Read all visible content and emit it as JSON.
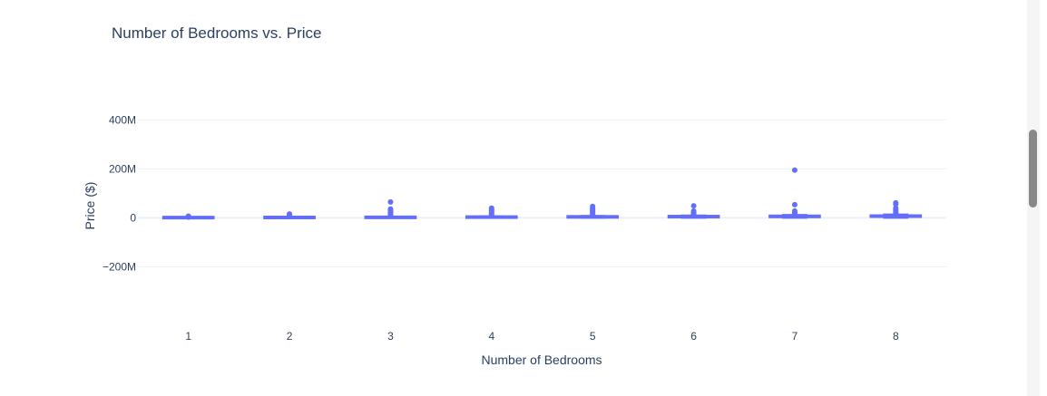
{
  "colors": {
    "series": "#636efa",
    "text": "#2a3f5f",
    "grid": "#ebf0f8"
  },
  "chart_data": {
    "type": "box",
    "title": "Number of Bedrooms vs. Price",
    "xlabel": "Number of Bedrooms",
    "ylabel": "Price ($)",
    "ylim": [
      -380000000,
      520000000
    ],
    "y_ticks": [
      {
        "value": 400000000,
        "label": "400M"
      },
      {
        "value": 200000000,
        "label": "200M"
      },
      {
        "value": 0,
        "label": "0"
      },
      {
        "value": -200000000,
        "label": "−200M"
      }
    ],
    "grid": true,
    "categories": [
      "1",
      "2",
      "3",
      "4",
      "5",
      "6",
      "7",
      "8"
    ],
    "boxes": [
      {
        "category": "1",
        "q1": 200000,
        "median": 500000,
        "q3": 1000000,
        "lower": 0,
        "upper": 1800000,
        "outliers": [
          3000000,
          4000000,
          5500000,
          7000000
        ]
      },
      {
        "category": "2",
        "q1": 500000,
        "median": 800000,
        "q3": 1500000,
        "lower": 0,
        "upper": 3000000,
        "outliers": [
          5000000,
          8000000,
          11000000,
          13000000,
          16000000
        ]
      },
      {
        "category": "3",
        "q1": 600000,
        "median": 1000000,
        "q3": 2000000,
        "lower": 0,
        "upper": 4000000,
        "outliers": [
          8000000,
          12000000,
          16000000,
          20000000,
          24000000,
          28000000,
          32000000,
          36000000,
          65000000
        ]
      },
      {
        "category": "4",
        "q1": 800000,
        "median": 1300000,
        "q3": 3000000,
        "lower": 0,
        "upper": 6000000,
        "outliers": [
          10000000,
          14000000,
          18000000,
          22000000,
          26000000,
          30000000,
          34000000,
          40000000
        ]
      },
      {
        "category": "5",
        "q1": 1000000,
        "median": 2000000,
        "q3": 4000000,
        "lower": 0,
        "upper": 8000000,
        "outliers": [
          12000000,
          16000000,
          20000000,
          25000000,
          30000000,
          35000000,
          40000000,
          47000000
        ]
      },
      {
        "category": "6",
        "q1": 1200000,
        "median": 2500000,
        "q3": 5000000,
        "lower": 0,
        "upper": 10000000,
        "outliers": [
          13000000,
          17000000,
          21000000,
          25000000,
          28000000,
          49000000
        ]
      },
      {
        "category": "7",
        "q1": 1500000,
        "median": 3000000,
        "q3": 6000000,
        "lower": 0,
        "upper": 12000000,
        "outliers": [
          15000000,
          19000000,
          23000000,
          28000000,
          54000000,
          195000000
        ]
      },
      {
        "category": "8",
        "q1": 2000000,
        "median": 3500000,
        "q3": 7000000,
        "lower": 0,
        "upper": 14000000,
        "outliers": [
          18000000,
          23000000,
          28000000,
          34000000,
          40000000,
          55000000,
          61000000
        ]
      }
    ]
  }
}
